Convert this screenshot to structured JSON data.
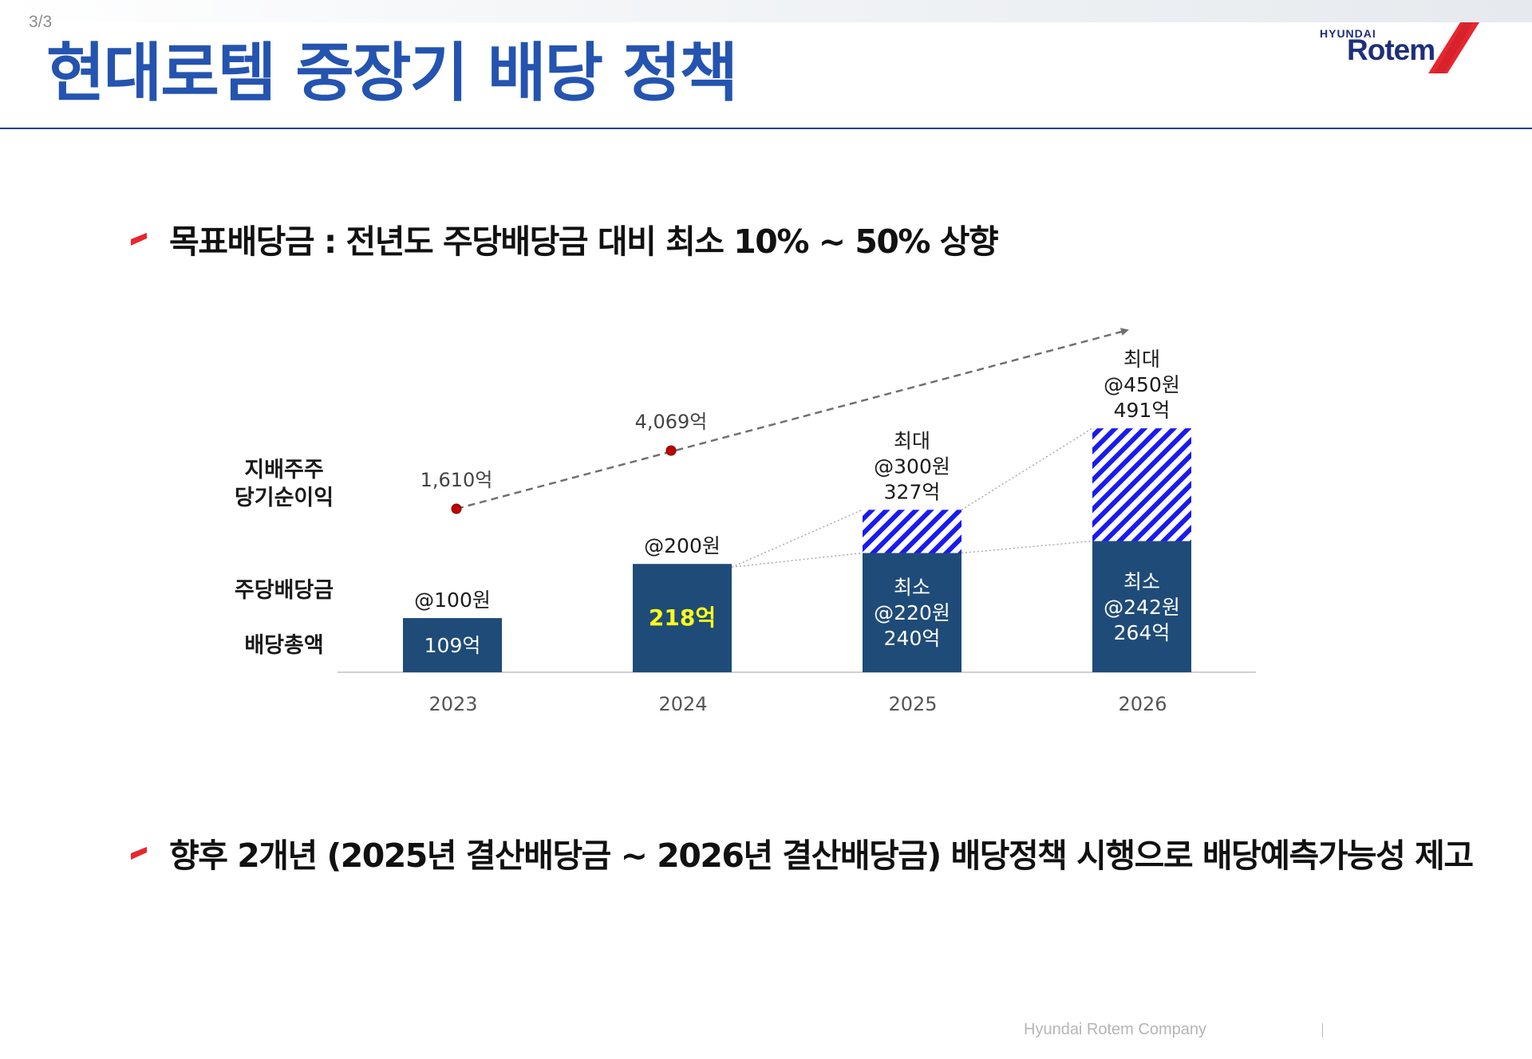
{
  "page": {
    "number": "3/3"
  },
  "header": {
    "title": "현대로템 중장기 배당 정책",
    "logo": {
      "small": "HYUNDAI",
      "big": "Rotem"
    }
  },
  "bullets": {
    "b1": "목표배당금 : 전년도 주당배당금 대비 최소 10% ~ 50% 상향",
    "b2": "향후 2개년 (2025년 결산배당금 ~ 2026년 결산배당금) 배당정책 시행으로 배당예측가능성 제고"
  },
  "row_labels": {
    "net_income": [
      "지배주주",
      "당기순이익"
    ],
    "dps": "주당배당금",
    "total": "배당총액"
  },
  "footer": {
    "company": "Hyundai Rotem Company"
  },
  "colors": {
    "bar": "#1f4b78",
    "hatch": "#1a1af0",
    "highlight": "#ffff1a",
    "point": "#c00000",
    "trend": "#707070",
    "title": "#2454b0",
    "logo_red": "#e8262f"
  },
  "chart_data": {
    "type": "bar",
    "title": "",
    "xlabel": "",
    "ylabel": "",
    "ylim": [
      0,
      520
    ],
    "categories": [
      "2023",
      "2024",
      "2025",
      "2026"
    ],
    "series": [
      {
        "name": "배당총액(최소)",
        "values": [
          109,
          218,
          240,
          264
        ]
      },
      {
        "name": "배당총액(최대 추가분)",
        "values": [
          0,
          0,
          87,
          227
        ]
      }
    ],
    "bar_labels": [
      {
        "lines": [
          "109억"
        ],
        "color": "#ffffff"
      },
      {
        "lines": [
          "218억"
        ],
        "color": "#ffff1a"
      },
      {
        "lines": [
          "최소",
          "@220원",
          "240억"
        ],
        "color": "#ffffff"
      },
      {
        "lines": [
          "최소",
          "@242원",
          "264억"
        ],
        "color": "#ffffff"
      }
    ],
    "top_labels": [
      [
        "@100원"
      ],
      [
        "@200원"
      ],
      [
        "최대",
        "@300원",
        "327억"
      ],
      [
        "최대",
        "@450원",
        "491억"
      ]
    ],
    "net_income": {
      "values": [
        1610,
        4069
      ],
      "labels": [
        "1,610억",
        "4,069억"
      ]
    }
  }
}
